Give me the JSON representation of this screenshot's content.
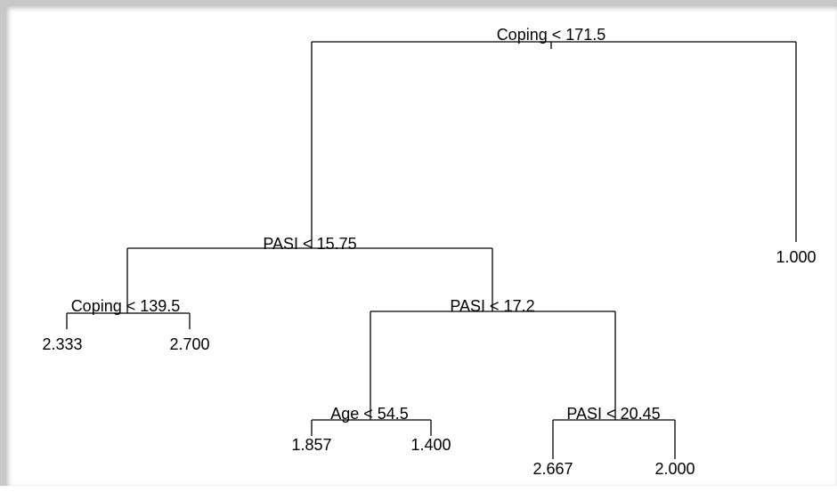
{
  "tree": {
    "splits": [
      "Coping < 171.5",
      "PASI < 15.75",
      "Coping < 139.5",
      "PASI < 17.2",
      "Age < 54.5",
      "PASI < 20.45"
    ],
    "leaves": [
      "1.000",
      "2.333",
      "2.700",
      "1.857",
      "1.400",
      "2.667",
      "2.000"
    ]
  }
}
